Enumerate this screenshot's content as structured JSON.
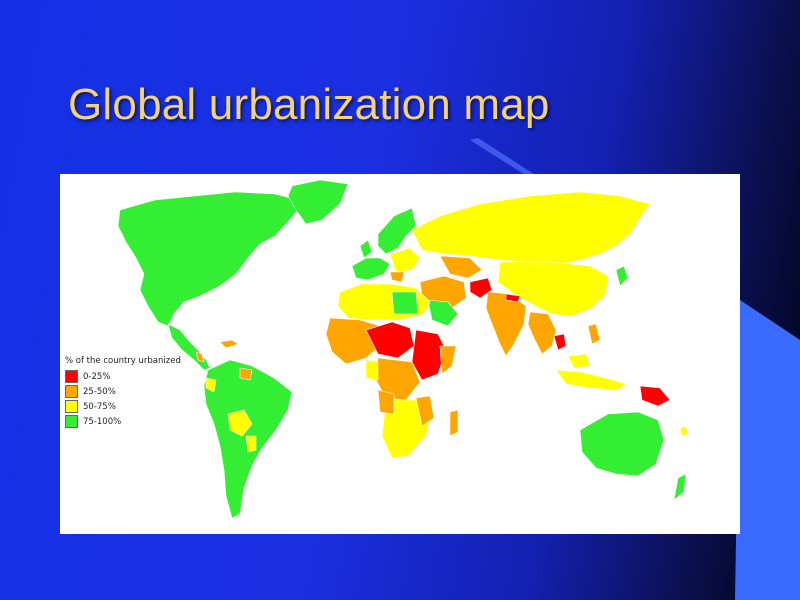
{
  "slide": {
    "title": "Global urbanization map"
  },
  "theme": {
    "title_color": "#f4d27a",
    "background_color": "#1430e6",
    "accent_color": "#3a6bff"
  },
  "map": {
    "legend": {
      "title": "% of the country urbanized",
      "items": [
        {
          "label": "0-25%",
          "color": "#ff0000"
        },
        {
          "label": "25-50%",
          "color": "#ffa500"
        },
        {
          "label": "50-75%",
          "color": "#ffff00"
        },
        {
          "label": "75-100%",
          "color": "#33ee33"
        }
      ]
    }
  }
}
